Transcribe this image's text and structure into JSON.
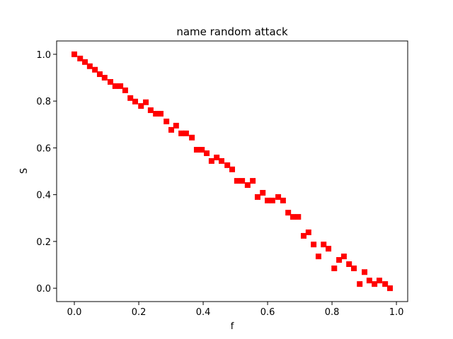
{
  "chart_data": {
    "type": "scatter",
    "title": "name random attack",
    "x_label": "f",
    "y_label": "S",
    "series": [
      {
        "color": "#ff0000",
        "marker": "square",
        "x": [
          0,
          0.018,
          0.033,
          0.048,
          0.064,
          0.079,
          0.094,
          0.112,
          0.127,
          0.143,
          0.158,
          0.174,
          0.189,
          0.207,
          0.222,
          0.237,
          0.253,
          0.268,
          0.286,
          0.301,
          0.316,
          0.332,
          0.347,
          0.365,
          0.38,
          0.396,
          0.411,
          0.426,
          0.442,
          0.457,
          0.475,
          0.49,
          0.505,
          0.521,
          0.538,
          0.554,
          0.569,
          0.585,
          0.6,
          0.615,
          0.633,
          0.648,
          0.664,
          0.679,
          0.695,
          0.712,
          0.727,
          0.743,
          0.758,
          0.774,
          0.789,
          0.807,
          0.822,
          0.837,
          0.853,
          0.868,
          0.886,
          0.901,
          0.916,
          0.932,
          0.947,
          0.965,
          0.98
        ],
        "values": [
          1.0,
          0.982,
          0.967,
          0.949,
          0.934,
          0.915,
          0.9,
          0.882,
          0.864,
          0.864,
          0.846,
          0.813,
          0.798,
          0.779,
          0.795,
          0.761,
          0.746,
          0.746,
          0.713,
          0.677,
          0.695,
          0.662,
          0.662,
          0.644,
          0.592,
          0.592,
          0.577,
          0.544,
          0.559,
          0.544,
          0.526,
          0.508,
          0.459,
          0.459,
          0.441,
          0.459,
          0.39,
          0.408,
          0.375,
          0.375,
          0.39,
          0.375,
          0.323,
          0.305,
          0.305,
          0.224,
          0.239,
          0.187,
          0.136,
          0.187,
          0.169,
          0.085,
          0.121,
          0.136,
          0.103,
          0.085,
          0.018,
          0.069,
          0.033,
          0.018,
          0.033,
          0.018,
          0.0
        ]
      }
    ],
    "xlim": [
      -0.055,
      1.035
    ],
    "ylim": [
      -0.057,
      1.057
    ],
    "xticks": [
      {
        "value": 0,
        "label": "0.0"
      },
      0.2,
      0.4,
      0.6,
      0.8,
      {
        "value": 1,
        "label": "1.0"
      }
    ],
    "yticks": [
      {
        "value": 0,
        "label": "0.0"
      },
      0.2,
      0.4,
      0.6,
      0.8,
      {
        "value": 1,
        "label": "1.0"
      }
    ]
  }
}
